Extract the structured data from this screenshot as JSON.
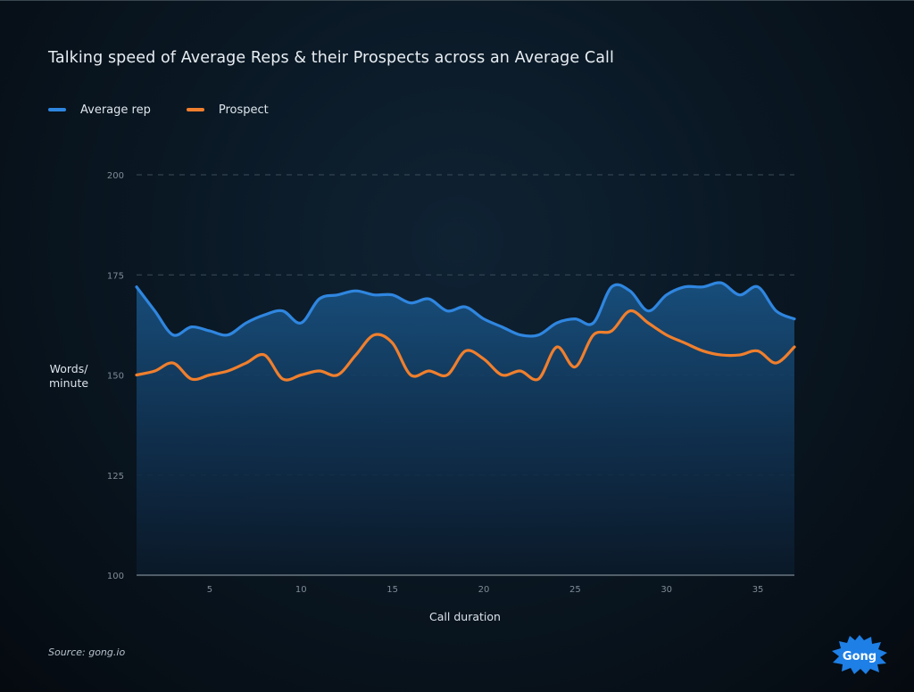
{
  "title": "Talking speed of Average Reps & their Prospects across an Average Call",
  "source": "Source: gong.io",
  "logo_text": "Gong",
  "colors": {
    "rep": "#2f86e0",
    "prospect": "#f07f2d",
    "logo": "#1e7fe6"
  },
  "chart_data": {
    "type": "line",
    "title": "Talking speed of Average Reps & their Prospects across an Average Call",
    "xlabel": "Call duration",
    "ylabel": "Words/ minute",
    "xlim": [
      1,
      37
    ],
    "ylim": [
      100,
      200
    ],
    "x_ticks": [
      5,
      10,
      15,
      20,
      25,
      30,
      35
    ],
    "y_ticks": [
      100,
      125,
      150,
      175,
      200
    ],
    "grid": true,
    "legend_position": "top-left",
    "series": [
      {
        "name": "Average rep",
        "color": "#2f86e0",
        "x": [
          1,
          2,
          3,
          4,
          5,
          6,
          7,
          8,
          9,
          10,
          11,
          12,
          13,
          14,
          15,
          16,
          17,
          18,
          19,
          20,
          21,
          22,
          23,
          24,
          25,
          26,
          27,
          28,
          29,
          30,
          31,
          32,
          33,
          34,
          35,
          36,
          37
        ],
        "values": [
          172,
          166,
          160,
          162,
          161,
          160,
          163,
          165,
          166,
          163,
          169,
          170,
          171,
          170,
          170,
          168,
          169,
          166,
          167,
          164,
          162,
          160,
          160,
          163,
          164,
          163,
          172,
          171,
          166,
          170,
          172,
          172,
          173,
          170,
          172,
          166,
          164
        ]
      },
      {
        "name": "Prospect",
        "color": "#f07f2d",
        "x": [
          1,
          2,
          3,
          4,
          5,
          6,
          7,
          8,
          9,
          10,
          11,
          12,
          13,
          14,
          15,
          16,
          17,
          18,
          19,
          20,
          21,
          22,
          23,
          24,
          25,
          26,
          27,
          28,
          29,
          30,
          31,
          32,
          33,
          34,
          35,
          36,
          37
        ],
        "values": [
          150,
          151,
          153,
          149,
          150,
          151,
          153,
          155,
          149,
          150,
          151,
          150,
          155,
          160,
          158,
          150,
          151,
          150,
          156,
          154,
          150,
          151,
          149,
          157,
          152,
          160,
          161,
          166,
          163,
          160,
          158,
          156,
          155,
          155,
          156,
          153,
          157
        ]
      }
    ]
  }
}
